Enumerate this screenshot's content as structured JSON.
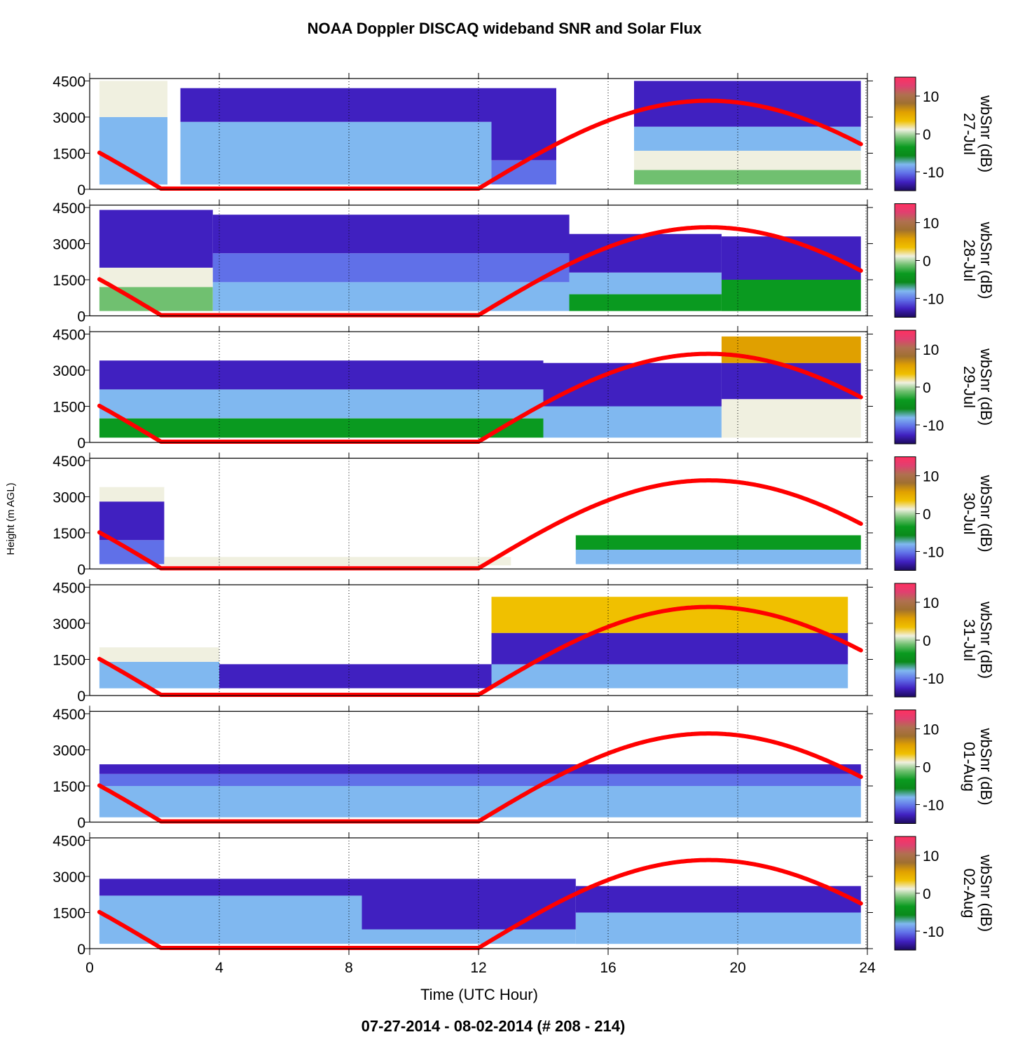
{
  "chart_data": {
    "type": "heatmap",
    "title": "NOAA Doppler DISCAQ wideband SNR and Solar Flux",
    "subtitle": "07-27-2014 - 08-02-2014   (# 208 - 214)",
    "xlabel": "Time (UTC Hour)",
    "ylabel": "Height (m AGL)",
    "colorbar_label": "wbSnr (dB)",
    "xlim": [
      0,
      24
    ],
    "ylim": [
      0,
      4600
    ],
    "x_ticks": [
      0,
      4,
      8,
      12,
      16,
      20,
      24
    ],
    "y_ticks": [
      0,
      1500,
      3000,
      4500
    ],
    "colorbar_range": [
      -15,
      15
    ],
    "colorbar_ticks": [
      -10,
      0,
      10
    ],
    "colorbar_colors": [
      "#1c0a5c",
      "#4020c0",
      "#6070e8",
      "#80b8f0",
      "#0a8a1a",
      "#0a9a20",
      "#70c070",
      "#f0f0e0",
      "#f0c000",
      "#e0a000",
      "#a07030",
      "#b07050",
      "#e04070",
      "#ff3060"
    ],
    "grid": "dotted vertical lines at 4-hour intervals",
    "solar_flux_color": "#ff0000",
    "panels": [
      {
        "date": "27-Jul",
        "snr_layers": [
          {
            "from": 0.3,
            "to": 2.4,
            "levels": [
              {
                "h": [
                  200,
                  3000
                ],
                "snr": -8
              },
              {
                "h": [
                  3000,
                  4500
                ],
                "snr": 0
              }
            ]
          },
          {
            "from": 2.8,
            "to": 12.4,
            "levels": [
              {
                "h": [
                  200,
                  1500
                ],
                "snr": -7
              },
              {
                "h": [
                  1500,
                  2800
                ],
                "snr": -8
              },
              {
                "h": [
                  2800,
                  4200
                ],
                "snr": -12
              }
            ]
          },
          {
            "from": 12.4,
            "to": 14.4,
            "levels": [
              {
                "h": [
                  200,
                  1200
                ],
                "snr": -9
              },
              {
                "h": [
                  1200,
                  4200
                ],
                "snr": -12
              }
            ]
          },
          {
            "from": 16.8,
            "to": 23.8,
            "levels": [
              {
                "h": [
                  200,
                  800
                ],
                "snr": -2
              },
              {
                "h": [
                  800,
                  1600
                ],
                "snr": 2
              },
              {
                "h": [
                  1600,
                  2600
                ],
                "snr": -8
              },
              {
                "h": [
                  2600,
                  4500
                ],
                "snr": -12
              }
            ]
          }
        ],
        "solar_flux": {
          "sunrise": 12.0,
          "noon": 19.1,
          "sunset": 2.2,
          "peak_height": 3650
        }
      },
      {
        "date": "28-Jul",
        "snr_layers": [
          {
            "from": 0.3,
            "to": 3.8,
            "levels": [
              {
                "h": [
                  200,
                  1200
                ],
                "snr": -2
              },
              {
                "h": [
                  1200,
                  2000
                ],
                "snr": 1
              },
              {
                "h": [
                  2000,
                  4400
                ],
                "snr": -12
              }
            ]
          },
          {
            "from": 3.8,
            "to": 14.8,
            "levels": [
              {
                "h": [
                  200,
                  1400
                ],
                "snr": -7
              },
              {
                "h": [
                  1400,
                  2600
                ],
                "snr": -9
              },
              {
                "h": [
                  2600,
                  4200
                ],
                "snr": -12
              }
            ]
          },
          {
            "from": 14.8,
            "to": 19.5,
            "levels": [
              {
                "h": [
                  200,
                  900
                ],
                "snr": -3
              },
              {
                "h": [
                  900,
                  1800
                ],
                "snr": -7
              },
              {
                "h": [
                  1800,
                  3400
                ],
                "snr": -12
              }
            ]
          },
          {
            "from": 19.5,
            "to": 23.8,
            "levels": [
              {
                "h": [
                  200,
                  1500
                ],
                "snr": -4
              },
              {
                "h": [
                  1500,
                  3300
                ],
                "snr": -11
              }
            ]
          }
        ],
        "solar_flux": {
          "sunrise": 12.0,
          "noon": 19.1,
          "sunset": 2.2,
          "peak_height": 3650
        }
      },
      {
        "date": "29-Jul",
        "snr_layers": [
          {
            "from": 0.3,
            "to": 14.0,
            "levels": [
              {
                "h": [
                  200,
                  1000
                ],
                "snr": -3
              },
              {
                "h": [
                  1000,
                  2200
                ],
                "snr": -8
              },
              {
                "h": [
                  2200,
                  3400
                ],
                "snr": -12
              }
            ]
          },
          {
            "from": 14.0,
            "to": 19.5,
            "levels": [
              {
                "h": [
                  200,
                  1500
                ],
                "snr": -8
              },
              {
                "h": [
                  1500,
                  3300
                ],
                "snr": -11
              }
            ]
          },
          {
            "from": 19.5,
            "to": 23.8,
            "levels": [
              {
                "h": [
                  200,
                  1800
                ],
                "snr": 1
              },
              {
                "h": [
                  1800,
                  3300
                ],
                "snr": -11
              },
              {
                "h": [
                  3300,
                  4400
                ],
                "snr": 6
              }
            ]
          }
        ],
        "solar_flux": {
          "sunrise": 12.0,
          "noon": 19.1,
          "sunset": 2.2,
          "peak_height": 3650
        }
      },
      {
        "date": "30-Jul",
        "snr_layers": [
          {
            "from": 0.3,
            "to": 2.3,
            "levels": [
              {
                "h": [
                  200,
                  1200
                ],
                "snr": -10
              },
              {
                "h": [
                  1200,
                  2800
                ],
                "snr": -12
              },
              {
                "h": [
                  2800,
                  3400
                ],
                "snr": 0
              }
            ]
          },
          {
            "from": 2.3,
            "to": 13.0,
            "levels": [
              {
                "h": [
                  150,
                  500
                ],
                "snr": 1
              }
            ]
          },
          {
            "from": 15.0,
            "to": 23.8,
            "levels": [
              {
                "h": [
                  200,
                  800
                ],
                "snr": -7
              },
              {
                "h": [
                  800,
                  1400
                ],
                "snr": -3
              }
            ]
          }
        ],
        "solar_flux": {
          "sunrise": 12.0,
          "noon": 19.1,
          "sunset": 2.2,
          "peak_height": 3650
        }
      },
      {
        "date": "31-Jul",
        "snr_layers": [
          {
            "from": 0.3,
            "to": 4.0,
            "levels": [
              {
                "h": [
                  300,
                  1400
                ],
                "snr": -7
              },
              {
                "h": [
                  1400,
                  2000
                ],
                "snr": 1
              }
            ]
          },
          {
            "from": 4.0,
            "to": 12.4,
            "levels": [
              {
                "h": [
                  300,
                  1300
                ],
                "snr": -12
              }
            ]
          },
          {
            "from": 12.4,
            "to": 23.4,
            "levels": [
              {
                "h": [
                  300,
                  1300
                ],
                "snr": -8
              },
              {
                "h": [
                  1300,
                  2600
                ],
                "snr": -11
              },
              {
                "h": [
                  2600,
                  4100
                ],
                "snr": 3
              }
            ]
          }
        ],
        "solar_flux": {
          "sunrise": 12.0,
          "noon": 19.1,
          "sunset": 2.2,
          "peak_height": 3650
        }
      },
      {
        "date": "01-Aug",
        "snr_layers": [
          {
            "from": 0.3,
            "to": 23.8,
            "levels": [
              {
                "h": [
                  200,
                  1500
                ],
                "snr": -7
              },
              {
                "h": [
                  1500,
                  2000
                ],
                "snr": -9
              },
              {
                "h": [
                  2000,
                  2400
                ],
                "snr": -12
              }
            ]
          }
        ],
        "solar_flux": {
          "sunrise": 12.0,
          "noon": 19.1,
          "sunset": 2.2,
          "peak_height": 3650
        }
      },
      {
        "date": "02-Aug",
        "snr_layers": [
          {
            "from": 0.3,
            "to": 8.4,
            "levels": [
              {
                "h": [
                  200,
                  2200
                ],
                "snr": -8
              },
              {
                "h": [
                  2200,
                  2900
                ],
                "snr": -12
              }
            ]
          },
          {
            "from": 8.4,
            "to": 15.0,
            "levels": [
              {
                "h": [
                  200,
                  800
                ],
                "snr": -7
              },
              {
                "h": [
                  800,
                  2900
                ],
                "snr": -11
              }
            ]
          },
          {
            "from": 15.0,
            "to": 23.8,
            "levels": [
              {
                "h": [
                  200,
                  1500
                ],
                "snr": -7
              },
              {
                "h": [
                  1500,
                  2600
                ],
                "snr": -12
              }
            ]
          }
        ],
        "solar_flux": {
          "sunrise": 12.0,
          "noon": 19.1,
          "sunset": 2.2,
          "peak_height": 3650
        }
      }
    ]
  }
}
